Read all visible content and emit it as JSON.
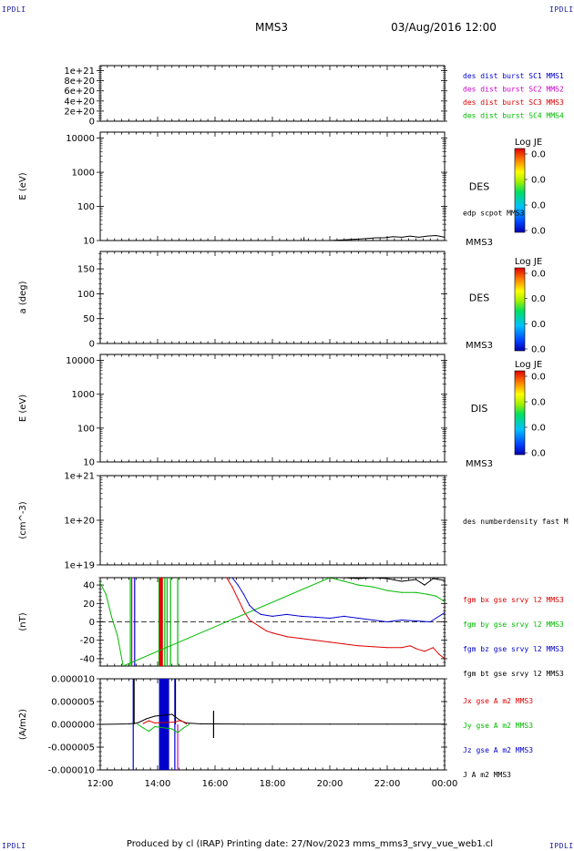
{
  "header": {
    "corner_tl": "IPDLI",
    "corner_tr": "IPDLI",
    "corner_bl": "IPDLI",
    "corner_br": "IPDLI",
    "title": "MMS3",
    "date": "03/Aug/2016 12:00"
  },
  "footer": {
    "text": "Produced by cl (IRAP)   Printing date: 27/Nov/2023   mms_mms3_srvy_vue_web1.cl"
  },
  "colors": {
    "blue": "#0000cc",
    "magenta": "#cc00cc",
    "red": "#dd0000",
    "green": "#00bb00",
    "black": "#000000"
  },
  "chart_data": [
    {
      "type": "line",
      "panel": "des-dist-burst",
      "ylabel": "",
      "yticks": [
        "1e+21",
        "8e+20",
        "6e+20",
        "4e+20",
        "2e+20",
        "0"
      ],
      "ylim": [
        0,
        1.1e+21
      ],
      "dashed_zero": true,
      "legend": [
        {
          "label": "des dist burst SC1 MMS1",
          "color": "blue"
        },
        {
          "label": "des dist burst SC2 MMS2",
          "color": "magenta"
        },
        {
          "label": "des dist burst SC3 MMS3",
          "color": "red"
        },
        {
          "label": "des dist burst SC4 MMS4",
          "color": "green"
        }
      ]
    },
    {
      "type": "heatmap",
      "panel": "des-energy",
      "ylabel": "E (eV)",
      "yscale": "log",
      "yticks": [
        "10000",
        "1000",
        "100",
        "10"
      ],
      "ylim": [
        10,
        15000
      ],
      "right_label": "DES",
      "bottom_label": "MMS3",
      "colorbar": {
        "title": "Log JE",
        "ticks": [
          "0.0",
          "0.0",
          "0.0",
          "0.0"
        ]
      },
      "overlay": {
        "label": "edp scpot MMS3",
        "x": [
          19.1,
          19.2,
          19.5,
          20.0,
          20.5,
          21.0,
          21.3,
          21.6,
          21.9,
          22.2,
          22.5,
          22.8,
          23.1,
          23.4,
          23.7,
          24.0
        ],
        "y": [
          10,
          10,
          10,
          10,
          10.5,
          11,
          11.5,
          12,
          12,
          13,
          12.5,
          13.5,
          12.5,
          13.5,
          14,
          12.5
        ]
      }
    },
    {
      "type": "heatmap",
      "panel": "des-pitch",
      "ylabel": "a (deg)",
      "yticks": [
        "150",
        "100",
        "50",
        "0"
      ],
      "ylim": [
        0,
        185
      ],
      "right_label": "DES",
      "bottom_label": "MMS3",
      "colorbar": {
        "title": "Log JE",
        "ticks": [
          "0.0",
          "0.0",
          "0.0",
          "0.0"
        ]
      }
    },
    {
      "type": "heatmap",
      "panel": "dis-energy",
      "ylabel": "E (eV)",
      "yscale": "log",
      "yticks": [
        "10000",
        "1000",
        "100",
        "10"
      ],
      "ylim": [
        10,
        15000
      ],
      "right_label": "DIS",
      "bottom_label": "MMS3",
      "colorbar": {
        "title": "Log JE",
        "ticks": [
          "0.0",
          "0.0",
          "0.0",
          "0.0"
        ]
      }
    },
    {
      "type": "line",
      "panel": "des-density",
      "ylabel": "(cm^-3)",
      "yscale": "log",
      "yticks": [
        "1e+21",
        "1e+20",
        "1e+19"
      ],
      "ylim": [
        1e+19,
        1e+21
      ],
      "legend": [
        {
          "label": "des numberdensity fast M",
          "color": "black"
        }
      ]
    },
    {
      "type": "line",
      "panel": "fgm",
      "ylabel": "(nT)",
      "yticks": [
        "40",
        "20",
        "0",
        "-20",
        "-40"
      ],
      "ylim": [
        -48,
        48
      ],
      "dashed_zero": true,
      "legend": [
        {
          "label": "fgm bx gse srvy l2 MMS3",
          "color": "red"
        },
        {
          "label": "fgm by gse srvy l2 MMS3",
          "color": "green"
        },
        {
          "label": "fgm bz gse srvy l2 MMS3",
          "color": "blue"
        },
        {
          "label": "fgm bt gse srvy l2 MMS3",
          "color": "black"
        }
      ],
      "series": [
        {
          "name": "fgm bx gse srvy l2 MMS3",
          "color": "red",
          "x": [
            16.4,
            16.6,
            16.8,
            17.0,
            17.2,
            17.4,
            17.6,
            17.8,
            18.0,
            18.5,
            19.0,
            19.5,
            20.0,
            20.5,
            21.0,
            21.5,
            22.0,
            22.5,
            22.8,
            23.0,
            23.3,
            23.6,
            23.8,
            24.0
          ],
          "y": [
            48,
            38,
            25,
            12,
            2,
            -2,
            -6,
            -10,
            -12,
            -16,
            -18,
            -20,
            -22,
            -24,
            -26,
            -27,
            -28,
            -28,
            -26,
            -29,
            -32,
            -28,
            -35,
            -40
          ]
        },
        {
          "name": "fgm by gse srvy l2 MMS3",
          "color": "green",
          "x": [
            12.0,
            12.2,
            12.4,
            12.6,
            12.8,
            20.0,
            20.5,
            21.0,
            21.5,
            22.0,
            22.5,
            23.0,
            23.4,
            23.7,
            24.0
          ],
          "y": [
            42,
            30,
            5,
            -15,
            -48,
            48,
            44,
            40,
            38,
            34,
            32,
            32,
            30,
            28,
            22
          ]
        },
        {
          "name": "fgm bz gse srvy l2 MMS3",
          "color": "blue",
          "x": [
            16.6,
            16.8,
            17.0,
            17.2,
            17.4,
            17.6,
            18.0,
            18.5,
            19.0,
            19.5,
            20.0,
            20.5,
            21.0,
            21.5,
            22.0,
            22.5,
            23.0,
            23.5,
            24.0
          ],
          "y": [
            48,
            40,
            30,
            18,
            12,
            8,
            6,
            8,
            6,
            5,
            4,
            6,
            4,
            2,
            0,
            2,
            1,
            0,
            10
          ]
        },
        {
          "name": "fgm bt gse srvy l2 MMS3",
          "color": "black",
          "x": [
            20.0,
            20.5,
            21.0,
            21.5,
            22.0,
            22.5,
            23.0,
            23.3,
            23.6,
            24.0
          ],
          "y": [
            48,
            48,
            47,
            48,
            47,
            44,
            46,
            40,
            47,
            45
          ]
        }
      ],
      "spikes": [
        {
          "x": 13.05,
          "color": "green"
        },
        {
          "x": 13.1,
          "color": "magenta"
        },
        {
          "x": 13.2,
          "color": "blue"
        },
        {
          "x": 14.05,
          "color": "green"
        },
        {
          "x": 14.12,
          "color": "red",
          "wide": true
        },
        {
          "x": 14.25,
          "color": "green"
        },
        {
          "x": 14.33,
          "color": "green"
        },
        {
          "x": 14.45,
          "color": "green"
        },
        {
          "x": 14.7,
          "color": "green"
        }
      ]
    },
    {
      "type": "line",
      "panel": "current",
      "ylabel": "(A/m2)",
      "yticks": [
        "0.000010",
        "0.000005",
        "0.000000",
        "-0.000005",
        "-0.000010"
      ],
      "ylim": [
        -1e-05,
        1e-05
      ],
      "legend": [
        {
          "label": "Jx gse A m2 MMS3",
          "color": "red"
        },
        {
          "label": "Jy gse A m2 MMS3",
          "color": "green"
        },
        {
          "label": "Jz gse A m2 MMS3",
          "color": "blue"
        },
        {
          "label": "J A m2 MMS3",
          "color": "black"
        }
      ],
      "block": {
        "x0": 14.05,
        "x1": 14.4,
        "color": "blue"
      },
      "spikes": [
        {
          "x": 13.15,
          "y0": -1e-05,
          "y1": 1e-05,
          "color": "blue"
        },
        {
          "x": 13.18,
          "y0": 0,
          "y1": 1e-05,
          "color": "black"
        },
        {
          "x": 14.6,
          "y0": -1e-05,
          "y1": 1e-05,
          "color": "blue"
        },
        {
          "x": 14.62,
          "y0": 0,
          "y1": 1e-05,
          "color": "black"
        },
        {
          "x": 14.7,
          "y0": -1e-05,
          "y1": 0,
          "color": "magenta"
        },
        {
          "x": 15.95,
          "y0": -3e-06,
          "y1": 3e-06,
          "color": "black"
        }
      ],
      "series": [
        {
          "name": "J A m2 MMS3",
          "color": "black",
          "x": [
            12.0,
            13.0,
            13.3,
            13.6,
            13.9,
            14.5,
            14.8,
            15.0,
            15.5,
            16.0,
            17.0,
            18.0,
            19.0,
            20.0,
            21.0,
            22.0,
            23.0,
            24.0
          ],
          "y": [
            0,
            1e-07,
            3e-07,
            1.2e-06,
            1.8e-06,
            2.2e-06,
            8e-07,
            3e-07,
            1e-07,
            1e-07,
            5e-08,
            5e-08,
            5e-08,
            5e-08,
            5e-08,
            5e-08,
            5e-08,
            5e-08
          ]
        },
        {
          "name": "Jy gse A m2 MMS3",
          "color": "green",
          "x": [
            13.3,
            13.5,
            13.7,
            13.9,
            14.5,
            14.7,
            14.9,
            15.1
          ],
          "y": [
            0,
            -8e-07,
            -1.5e-06,
            -5e-07,
            -1e-06,
            -1.8e-06,
            -8e-07,
            0
          ]
        },
        {
          "name": "Jx gse A m2 MMS3",
          "color": "red",
          "x": [
            13.5,
            13.7,
            13.9,
            14.6,
            14.8,
            15.0
          ],
          "y": [
            2e-07,
            8e-07,
            3e-07,
            5e-07,
            9e-07,
            1e-07
          ]
        }
      ]
    }
  ],
  "xaxis": {
    "ticks": [
      "12:00",
      "14:00",
      "16:00",
      "18:00",
      "20:00",
      "22:00",
      "00:00"
    ],
    "tick_values": [
      12,
      14,
      16,
      18,
      20,
      22,
      24
    ],
    "xlim": [
      12,
      24
    ]
  }
}
